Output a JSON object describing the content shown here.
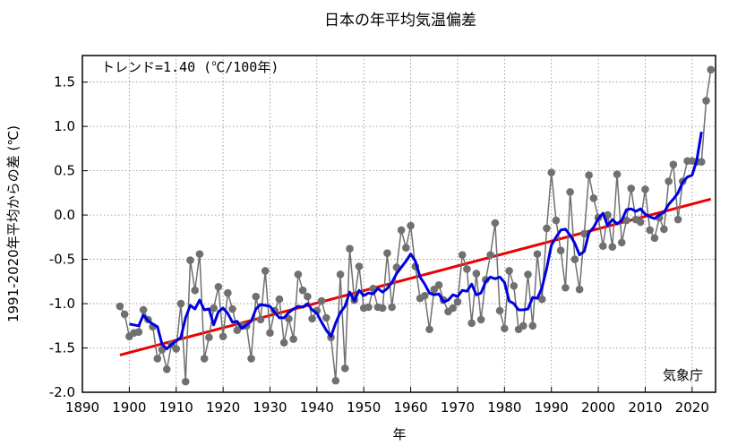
{
  "chart_data": {
    "type": "line",
    "title": "日本の年平均気温偏差",
    "xlabel": "年",
    "ylabel": "1991-2020年平均からの差 (℃)",
    "xlim": [
      1890,
      2025
    ],
    "ylim": [
      -2.0,
      1.8
    ],
    "xticks": [
      1890,
      1900,
      1910,
      1920,
      1930,
      1940,
      1950,
      1960,
      1970,
      1980,
      1990,
      2000,
      2010,
      2020
    ],
    "yticks": [
      -2.0,
      -1.5,
      -1.0,
      -0.5,
      0.0,
      0.5,
      1.0,
      1.5
    ],
    "ytick_labels": [
      "-2.0",
      "-1.5",
      "-1.0",
      "-0.5",
      "0.0",
      "0.5",
      "1.0",
      "1.5"
    ],
    "grid": true,
    "annotations": {
      "trend": "トレンド=1.40 (℃/100年)",
      "source": "気象庁"
    },
    "colors": {
      "annual": "#707070",
      "moving_average": "#0000e0",
      "trend": "#ee0000"
    },
    "series": [
      {
        "kind": "annual",
        "x": [
          1898,
          1899,
          1900,
          1901,
          1902,
          1903,
          1904,
          1905,
          1906,
          1907,
          1908,
          1909,
          1910,
          1911,
          1912,
          1913,
          1914,
          1915,
          1916,
          1917,
          1918,
          1919,
          1920,
          1921,
          1922,
          1923,
          1924,
          1925,
          1926,
          1927,
          1928,
          1929,
          1930,
          1931,
          1932,
          1933,
          1934,
          1935,
          1936,
          1937,
          1938,
          1939,
          1940,
          1941,
          1942,
          1943,
          1944,
          1945,
          1946,
          1947,
          1948,
          1949,
          1950,
          1951,
          1952,
          1953,
          1954,
          1955,
          1956,
          1957,
          1958,
          1959,
          1960,
          1961,
          1962,
          1963,
          1964,
          1965,
          1966,
          1967,
          1968,
          1969,
          1970,
          1971,
          1972,
          1973,
          1974,
          1975,
          1976,
          1977,
          1978,
          1979,
          1980,
          1981,
          1982,
          1983,
          1984,
          1985,
          1986,
          1987,
          1988,
          1989,
          1990,
          1991,
          1992,
          1993,
          1994,
          1995,
          1996,
          1997,
          1998,
          1999,
          2000,
          2001,
          2002,
          2003,
          2004,
          2005,
          2006,
          2007,
          2008,
          2009,
          2010,
          2011,
          2012,
          2013,
          2014,
          2015,
          2016,
          2017,
          2018,
          2019,
          2020,
          2021,
          2022,
          2023,
          2024
        ],
        "values": [
          -1.03,
          -1.12,
          -1.37,
          -1.33,
          -1.32,
          -1.07,
          -1.18,
          -1.26,
          -1.62,
          -1.52,
          -1.74,
          -1.46,
          -1.51,
          -1.0,
          -1.88,
          -0.51,
          -0.85,
          -0.44,
          -1.62,
          -1.38,
          -1.05,
          -0.81,
          -1.37,
          -0.88,
          -1.06,
          -1.3,
          -1.25,
          -1.25,
          -1.62,
          -0.92,
          -1.18,
          -0.63,
          -1.33,
          -1.08,
          -0.95,
          -1.44,
          -1.17,
          -1.4,
          -0.67,
          -0.85,
          -0.92,
          -1.17,
          -1.08,
          -0.97,
          -1.16,
          -1.38,
          -1.87,
          -0.67,
          -1.73,
          -0.38,
          -0.96,
          -0.58,
          -1.05,
          -1.04,
          -0.83,
          -1.04,
          -1.05,
          -0.43,
          -1.04,
          -0.59,
          -0.17,
          -0.37,
          -0.12,
          -0.58,
          -0.94,
          -0.91,
          -1.29,
          -0.84,
          -0.79,
          -0.96,
          -1.09,
          -1.05,
          -0.98,
          -0.45,
          -0.61,
          -1.22,
          -0.66,
          -1.18,
          -0.73,
          -0.45,
          -0.09,
          -1.08,
          -1.28,
          -0.63,
          -0.8,
          -1.29,
          -1.25,
          -0.67,
          -1.25,
          -0.44,
          -0.95,
          -0.15,
          0.48,
          -0.06,
          -0.4,
          -0.82,
          0.26,
          -0.5,
          -0.84,
          -0.21,
          0.45,
          0.19,
          -0.03,
          -0.35,
          0.0,
          -0.36,
          0.46,
          -0.31,
          -0.06,
          0.3,
          -0.05,
          -0.08,
          0.29,
          -0.17,
          -0.26,
          -0.03,
          -0.16,
          0.38,
          0.57,
          -0.05,
          0.38,
          0.61,
          0.61,
          0.6,
          0.6,
          1.29,
          1.64
        ]
      },
      {
        "kind": "moving_average",
        "x": [
          1900,
          1901,
          1902,
          1903,
          1904,
          1905,
          1906,
          1907,
          1908,
          1909,
          1910,
          1911,
          1912,
          1913,
          1914,
          1915,
          1916,
          1917,
          1918,
          1919,
          1920,
          1921,
          1922,
          1923,
          1924,
          1925,
          1926,
          1927,
          1928,
          1929,
          1930,
          1931,
          1932,
          1933,
          1934,
          1935,
          1936,
          1937,
          1938,
          1939,
          1940,
          1941,
          1942,
          1943,
          1944,
          1945,
          1946,
          1947,
          1948,
          1949,
          1950,
          1951,
          1952,
          1953,
          1954,
          1955,
          1956,
          1957,
          1958,
          1959,
          1960,
          1961,
          1962,
          1963,
          1964,
          1965,
          1966,
          1967,
          1968,
          1969,
          1970,
          1971,
          1972,
          1973,
          1974,
          1975,
          1976,
          1977,
          1978,
          1979,
          1980,
          1981,
          1982,
          1983,
          1984,
          1985,
          1986,
          1987,
          1988,
          1989,
          1990,
          1991,
          1992,
          1993,
          1994,
          1995,
          1996,
          1997,
          1998,
          1999,
          2000,
          2001,
          2002,
          2003,
          2004,
          2005,
          2006,
          2007,
          2008,
          2009,
          2010,
          2011,
          2012,
          2013,
          2014,
          2015,
          2016,
          2017,
          2018,
          2019,
          2020,
          2021,
          2022
        ],
        "values": [
          -1.23,
          -1.24,
          -1.25,
          -1.13,
          -1.19,
          -1.23,
          -1.26,
          -1.46,
          -1.51,
          -1.46,
          -1.42,
          -1.38,
          -1.16,
          -1.02,
          -1.06,
          -0.96,
          -1.07,
          -1.06,
          -1.24,
          -1.09,
          -1.05,
          -1.11,
          -1.21,
          -1.2,
          -1.28,
          -1.24,
          -1.2,
          -1.06,
          -1.01,
          -1.02,
          -1.03,
          -1.1,
          -1.16,
          -1.16,
          -1.1,
          -1.06,
          -1.03,
          -1.04,
          -1.0,
          -1.07,
          -1.11,
          -1.21,
          -1.3,
          -1.37,
          -1.22,
          -1.1,
          -1.03,
          -0.87,
          -0.97,
          -0.85,
          -0.91,
          -0.88,
          -0.89,
          -0.83,
          -0.87,
          -0.83,
          -0.76,
          -0.66,
          -0.59,
          -0.52,
          -0.44,
          -0.52,
          -0.7,
          -0.78,
          -0.88,
          -0.9,
          -0.89,
          -0.98,
          -0.96,
          -0.9,
          -0.92,
          -0.85,
          -0.86,
          -0.78,
          -0.9,
          -0.88,
          -0.75,
          -0.7,
          -0.72,
          -0.7,
          -0.76,
          -0.97,
          -1.0,
          -1.07,
          -1.07,
          -1.06,
          -0.93,
          -0.94,
          -0.82,
          -0.6,
          -0.34,
          -0.25,
          -0.17,
          -0.16,
          -0.23,
          -0.32,
          -0.45,
          -0.41,
          -0.2,
          -0.14,
          -0.04,
          0.02,
          -0.12,
          -0.05,
          -0.1,
          -0.06,
          0.06,
          0.07,
          0.04,
          0.07,
          0.01,
          -0.02,
          -0.04,
          0.0,
          0.03,
          0.12,
          0.18,
          0.25,
          0.37,
          0.43,
          0.45,
          0.62,
          0.94
        ]
      },
      {
        "kind": "trend",
        "x": [
          1898,
          2024
        ],
        "values": [
          -1.58,
          0.18
        ]
      }
    ]
  }
}
